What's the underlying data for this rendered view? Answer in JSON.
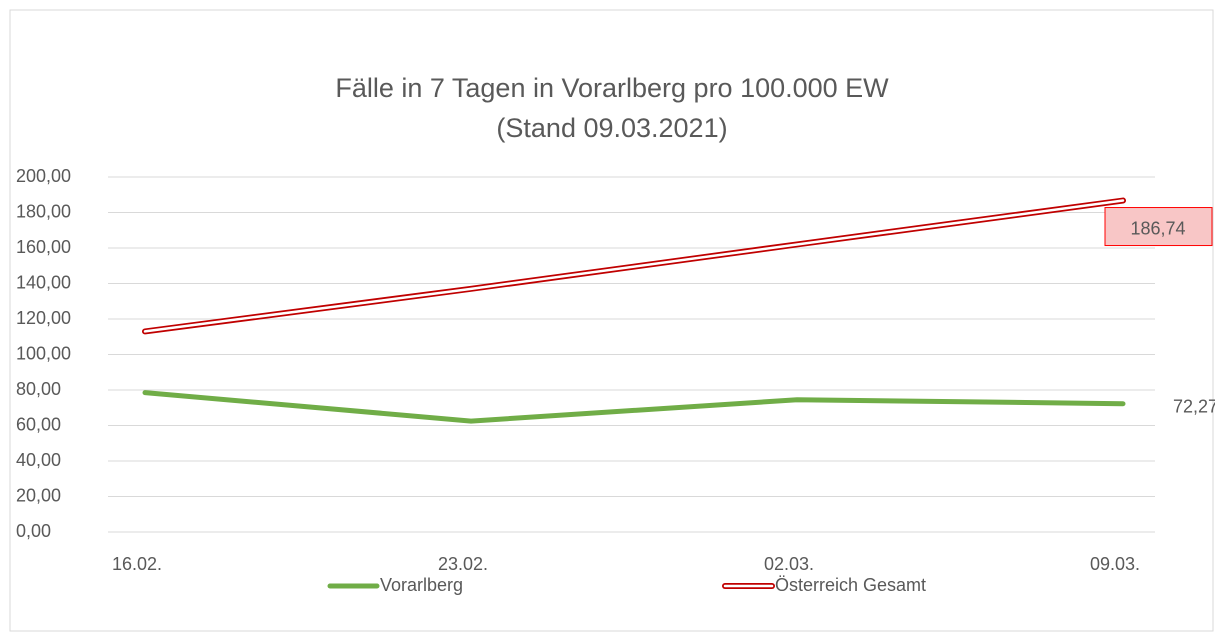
{
  "chart_data": {
    "type": "line",
    "title": "Fälle in 7 Tagen in Vorarlberg pro 100.000 EW",
    "subtitle": "(Stand 09.03.2021)",
    "categories": [
      "16.02.",
      "23.02.",
      "02.03.",
      "09.03."
    ],
    "series": [
      {
        "name": "Vorarlberg",
        "color": "#70ad47",
        "style": "solid",
        "values": [
          78.5,
          62.5,
          74.5,
          72.27
        ],
        "value_labels": [
          null,
          null,
          null,
          "72,27"
        ]
      },
      {
        "name": "Österreich Gesamt",
        "color": "#c00000",
        "style": "double",
        "values": [
          113,
          137,
          162,
          186.74
        ],
        "value_labels": [
          null,
          null,
          null,
          "186,74"
        ]
      }
    ],
    "ylim": [
      0,
      200
    ],
    "yticks": [
      {
        "value": 0,
        "label": "0,00"
      },
      {
        "value": 20,
        "label": "20,00"
      },
      {
        "value": 40,
        "label": "40,00"
      },
      {
        "value": 60,
        "label": "60,00"
      },
      {
        "value": 80,
        "label": "80,00"
      },
      {
        "value": 100,
        "label": "100,00"
      },
      {
        "value": 120,
        "label": "120,00"
      },
      {
        "value": 140,
        "label": "140,00"
      },
      {
        "value": 160,
        "label": "160,00"
      },
      {
        "value": 180,
        "label": "180,00"
      },
      {
        "value": 200,
        "label": "200,00"
      }
    ],
    "grid": true
  }
}
